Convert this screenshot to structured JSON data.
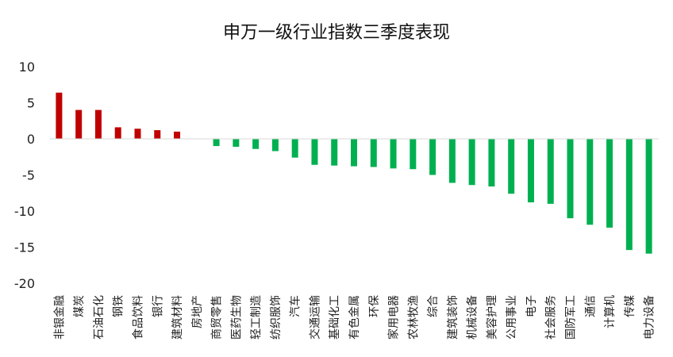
{
  "chart_data": {
    "type": "bar",
    "title": "申万一级行业指数三季度表现",
    "xlabel": "",
    "ylabel": "",
    "ylim": [
      -20,
      10
    ],
    "yticks": [
      10,
      5,
      0,
      -5,
      -10,
      -15,
      -20
    ],
    "grid": false,
    "legend": "none",
    "categories": [
      "非银金融",
      "煤炭",
      "石油石化",
      "钢铁",
      "食品饮料",
      "银行",
      "建筑材料",
      "房地产",
      "商贸零售",
      "医药生物",
      "轻工制造",
      "纺织服饰",
      "汽车",
      "交通运输",
      "基础化工",
      "有色金属",
      "环保",
      "家用电器",
      "农林牧渔",
      "综合",
      "建筑装饰",
      "机械设备",
      "美容护理",
      "公用事业",
      "电子",
      "社会服务",
      "国防军工",
      "通信",
      "计算机",
      "传媒",
      "电力设备"
    ],
    "values": [
      6.4,
      4.0,
      4.0,
      1.6,
      1.4,
      1.2,
      1.0,
      0.0,
      -1.0,
      -1.1,
      -1.4,
      -1.7,
      -2.6,
      -3.6,
      -3.7,
      -3.8,
      -3.9,
      -4.1,
      -4.2,
      -5.0,
      -6.1,
      -6.4,
      -6.6,
      -7.6,
      -8.8,
      -9.0,
      -11.0,
      -11.9,
      -12.3,
      -15.4,
      -15.9
    ],
    "colors": {
      "positive": "#C00000",
      "negative": "#00B050"
    }
  }
}
